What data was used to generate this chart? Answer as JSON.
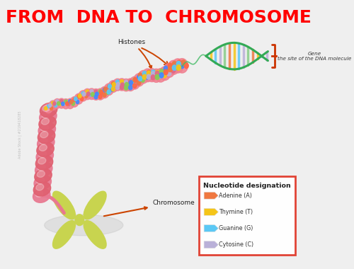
{
  "title": "FROM  DNA TO  CHROMOSOME",
  "title_color": "#FF0000",
  "title_fontsize": 18,
  "background_color": "#EFEFEF",
  "legend_title": "Nucleotide designation",
  "legend_items": [
    {
      "label": "Adenine (A)",
      "color": "#F07840"
    },
    {
      "label": "Thymine (T)",
      "color": "#F5C518"
    },
    {
      "label": "Guanine (G)",
      "color": "#5BC8F5"
    },
    {
      "label": "Cytosine (C)",
      "color": "#B9B0D8"
    }
  ],
  "legend_box_color": "#E0392A",
  "label_histones": "Histones",
  "label_gene_line1": "Gene",
  "label_gene_line2": "the site of the DNA molecule",
  "label_chromosome": "Chromosome",
  "arrow_color": "#CC4400",
  "pink_color": "#F08090",
  "pink_dark": "#E06070",
  "pink_coil": "#E87890",
  "chrom_color": "#C8D44F",
  "chrom_shadow": "#BBBBBB",
  "dna_green": "#44BB66",
  "bead_colors": [
    "#F07840",
    "#5BC8F5",
    "#F5C518",
    "#B9B0D8",
    "#E06888",
    "#88CC55",
    "#4488FF",
    "#FF6644"
  ]
}
